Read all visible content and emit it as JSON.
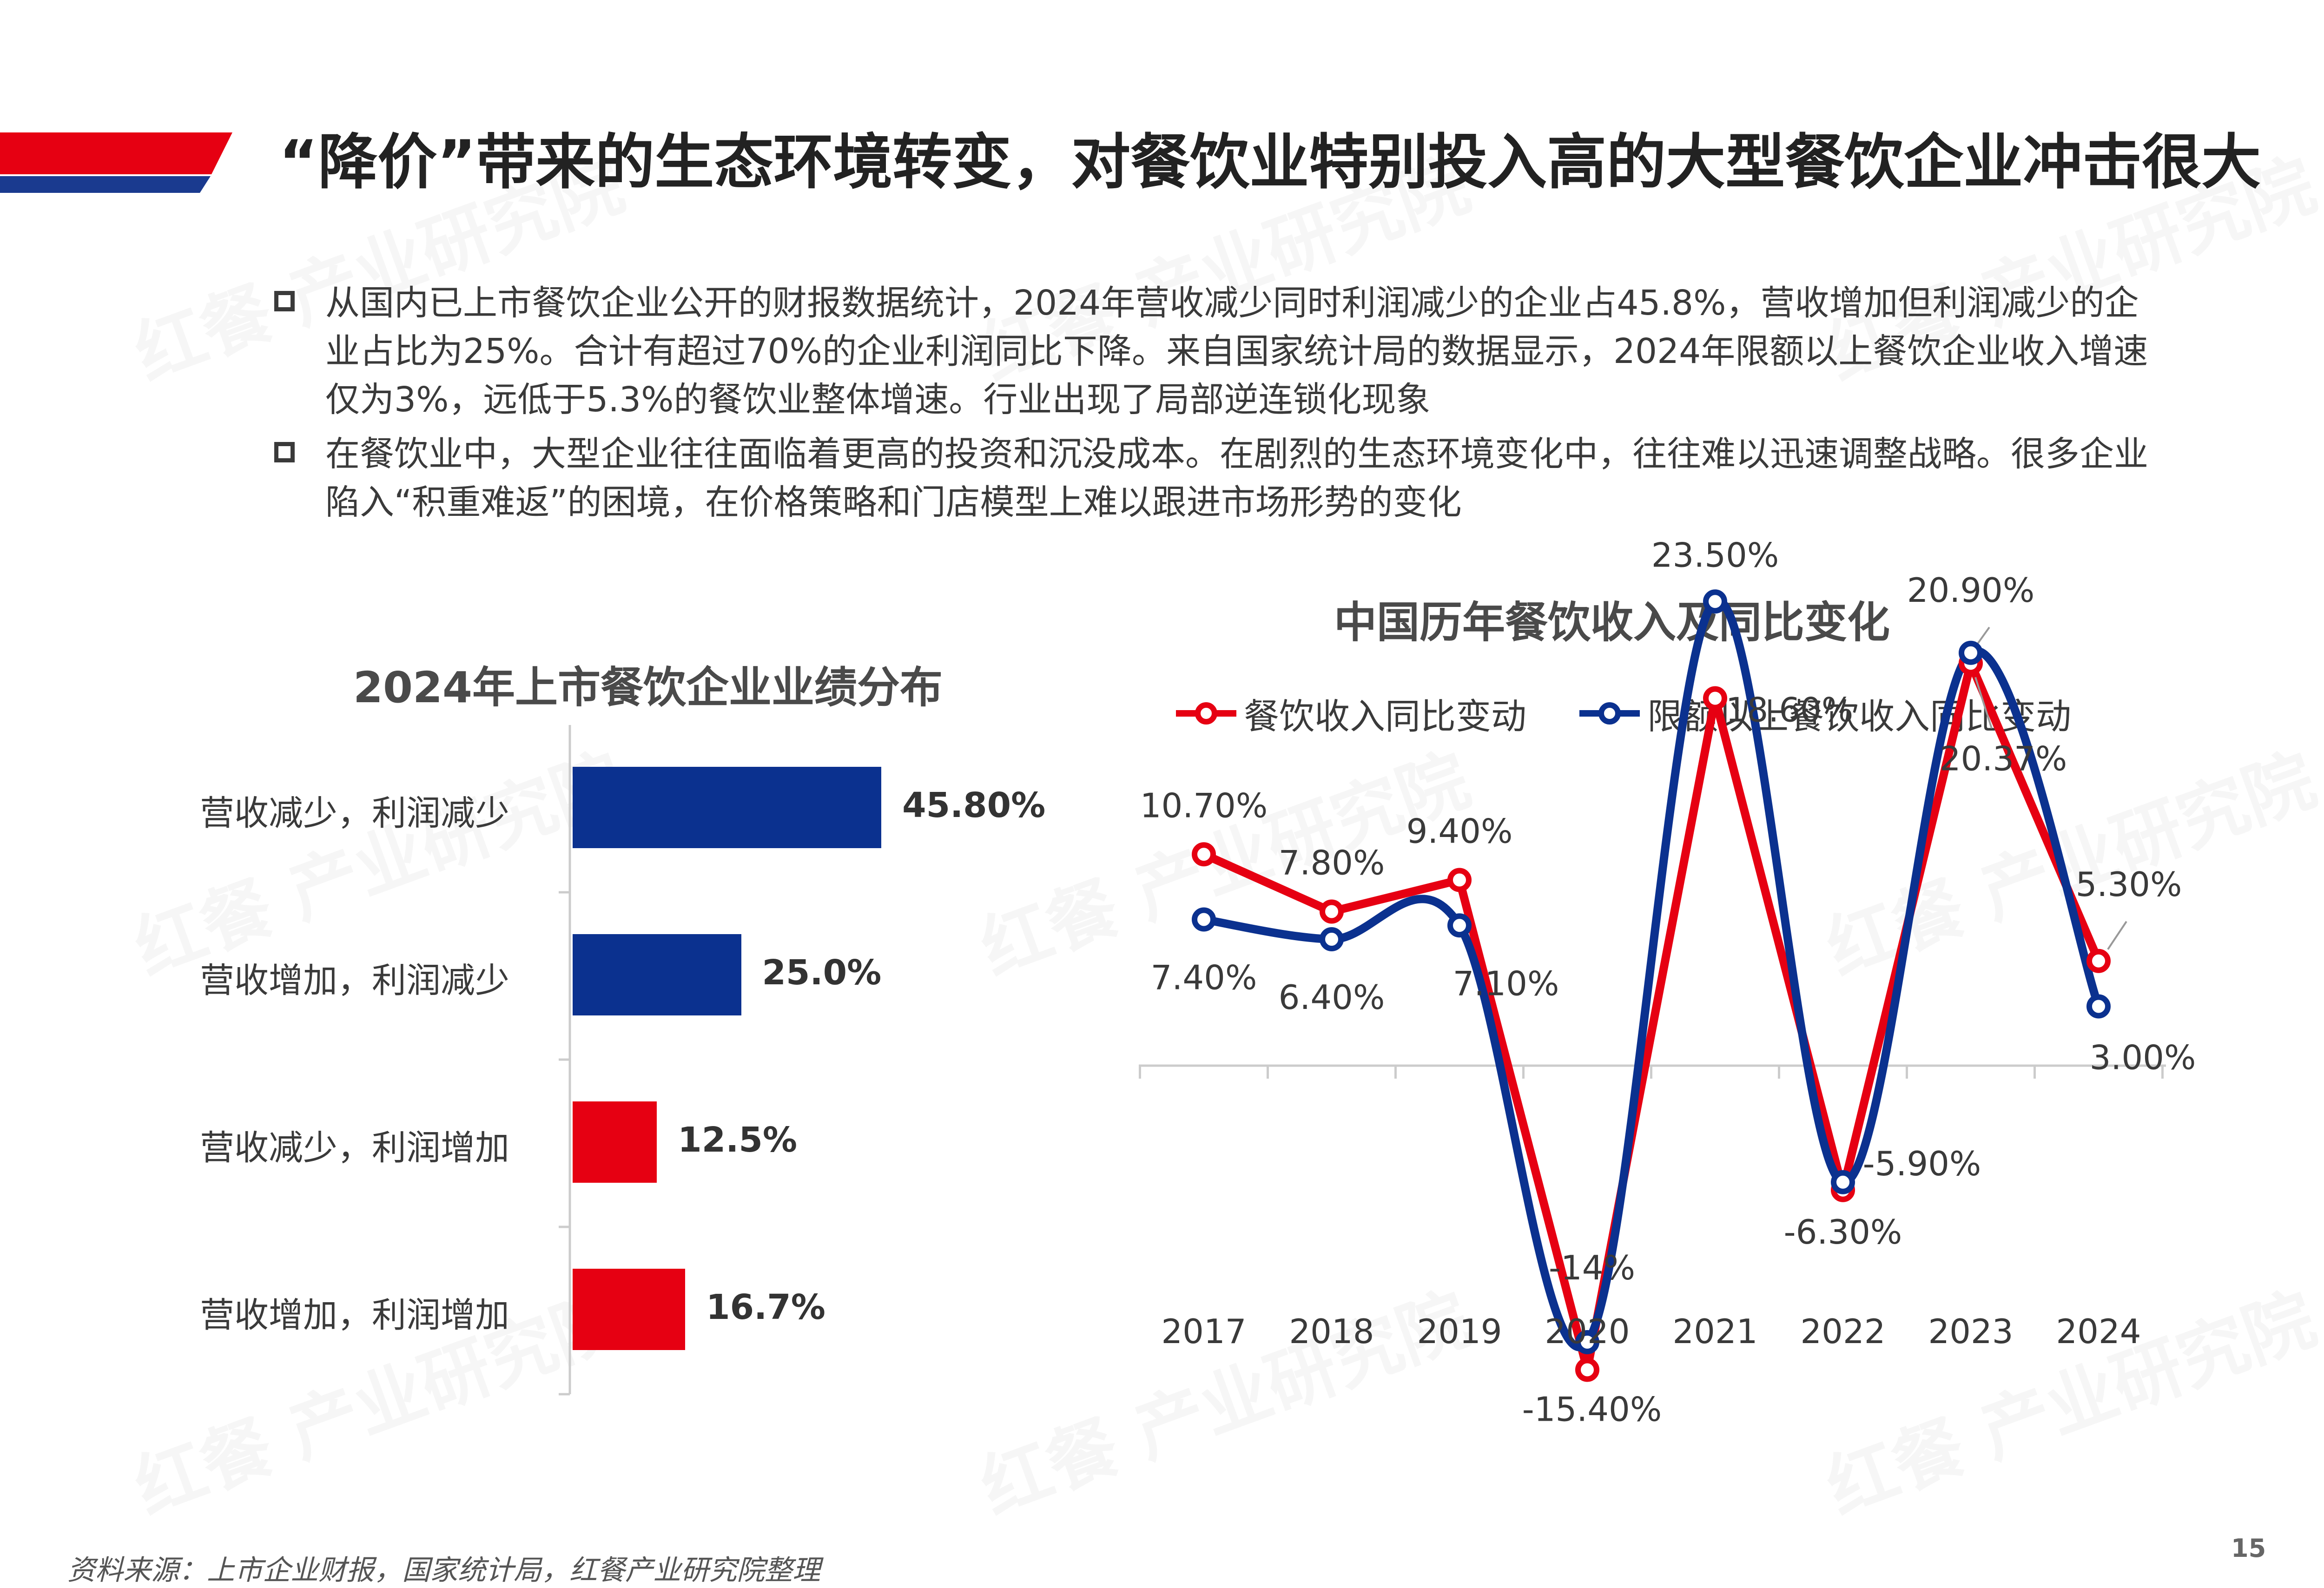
{
  "header": {
    "title": "“降价”带来的生态环境转变，对餐饮业特别投入高的大型餐饮企业冲击很大",
    "band_colors": {
      "red": "#e60012",
      "blue": "#1a3a8f"
    }
  },
  "bullets": [
    {
      "text": "从国内已上市餐饮企业公开的财报数据统计，2024年营收减少同时利润减少的企业占45.8%，营收增加但利润减少的企业占比为25%。合计有超过70%的企业利润同比下降。来自国家统计局的数据显示，2024年限额以上餐饮企业收入增速仅为3%，远低于5.3%的餐饮业整体增速。行业出现了局部逆连锁化现象"
    },
    {
      "text": "在餐饮业中，大型企业往往面临着更高的投资和沉没成本。在剧烈的生态环境变化中，往往难以迅速调整战略。很多企业陷入“积重难返”的困境，在价格策略和门店模型上难以跟进市场形势的变化"
    }
  ],
  "watermark": {
    "text": "红餐 产业研究院"
  },
  "chart_data": [
    {
      "type": "bar",
      "orientation": "horizontal",
      "title": "2024年上市餐饮企业业绩分布",
      "categories": [
        "营收减少，利润减少",
        "营收增加，利润减少",
        "营收减少，利润增加",
        "营收增加，利润增加"
      ],
      "values": [
        45.8,
        25.0,
        12.5,
        16.7
      ],
      "value_labels": [
        "45.80%",
        "25.0%",
        "12.5%",
        "16.7%"
      ],
      "bar_colors": [
        "#0b318f",
        "#0b318f",
        "#e60012",
        "#e60012"
      ],
      "grid": false
    },
    {
      "type": "line",
      "title": "中国历年餐饮收入及同比变化",
      "x": [
        "2017",
        "2018",
        "2019",
        "2020",
        "2021",
        "2022",
        "2023",
        "2024"
      ],
      "series": [
        {
          "name": "餐饮收入同比变动",
          "color": "#e60012",
          "values": [
            10.7,
            7.8,
            9.4,
            -15.4,
            18.6,
            -6.3,
            20.37,
            5.3
          ],
          "labels": [
            "10.70%",
            "7.80%",
            "9.40%",
            "-15.40%",
            "18.60%",
            "-6.30%",
            "20.37%",
            "5.30%"
          ]
        },
        {
          "name": "限额以上餐饮收入同比变动",
          "color": "#0b318f",
          "values": [
            7.4,
            6.4,
            7.1,
            -14.0,
            23.5,
            -5.9,
            20.9,
            3.0
          ],
          "labels": [
            "7.40%",
            "6.40%",
            "7.10%",
            "-14%",
            "23.50%",
            "-5.90%",
            "20.90%",
            "3.00%"
          ]
        }
      ],
      "ylim": [
        -18,
        26
      ],
      "legend": "top",
      "grid": false
    }
  ],
  "footer": {
    "source": "资料来源：上市企业财报，国家统计局，红餐产业研究院整理",
    "page_number": "15"
  }
}
